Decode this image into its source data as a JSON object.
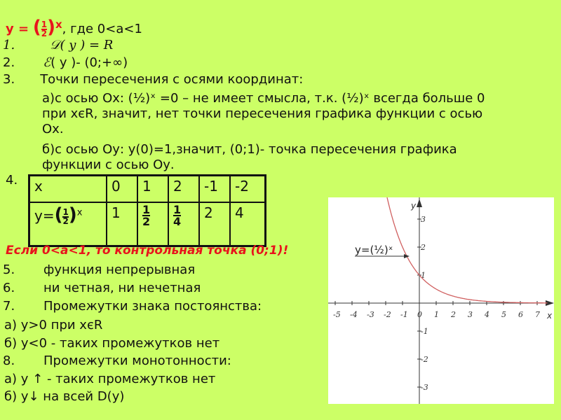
{
  "header": {
    "func": "y =",
    "base_num": "1",
    "base_den": "2",
    "exp": "x",
    "cond": ", где 0<a<1"
  },
  "items": [
    {
      "num": "1.",
      "sym": "𝒟",
      "text": "( y ) = R"
    },
    {
      "num": "2.",
      "sym": "ℰ",
      "text": "( y )- (0;+∞)"
    },
    {
      "num": "3.",
      "text": "Точки пересечения с осями координат:"
    }
  ],
  "intersections": {
    "a_line1": "а)с осью Ох: (½)ˣ =0 – не имеет смысла, т.к. (½)ˣ всегда больше 0",
    "a_line2": "при хєR, значит, нет точки пересечения графика функции с осью",
    "a_line3": "Ох.",
    "b_line1": "б)с осью Оу: у(0)=1,значит, (0;1)- точка пересечения графика",
    "b_line2": "функции с осью Оу."
  },
  "table": {
    "num": "4.",
    "row1": [
      "x",
      "0",
      "1",
      "2",
      "-1",
      "-2"
    ],
    "row2_label": "y=",
    "row2": [
      {
        "v": "1"
      },
      {
        "n": "1",
        "d": "2"
      },
      {
        "n": "1",
        "d": "4"
      },
      {
        "v": "2"
      },
      {
        "v": "4"
      }
    ]
  },
  "note": "Если 0<a<1, то контрольная точка (0;1)!",
  "props": [
    {
      "num": "5.",
      "text": "функция непрерывная"
    },
    {
      "num": "6.",
      "text": "ни четная, ни нечетная"
    },
    {
      "num": "7.",
      "text": "Промежутки знака постоянства:"
    },
    {
      "num": "",
      "text": "а)  y>0 при хєR"
    },
    {
      "num": "",
      "text": "б)  y<0 - таких промежутков нет"
    },
    {
      "num": "8.",
      "text": "Промежутки монотонности:"
    },
    {
      "num": "",
      "text": "а)  y ↑ - таких промежутков нет"
    },
    {
      "num": "",
      "text": "б)  y↓  на всей D(y)"
    }
  ],
  "graph": {
    "label": "y=(½)ˣ",
    "x_axis_label": "x",
    "y_axis_label": "y",
    "x_ticks": [
      "-5",
      "-4",
      "-3",
      "-2",
      "-1",
      "0",
      "1",
      "2",
      "3",
      "4",
      "5",
      "6",
      "7"
    ],
    "y_ticks": [
      "3",
      "2",
      "1",
      "-1",
      "-2",
      "-3"
    ],
    "curve_color": "#d06060",
    "function": "y=(1/2)^x"
  }
}
